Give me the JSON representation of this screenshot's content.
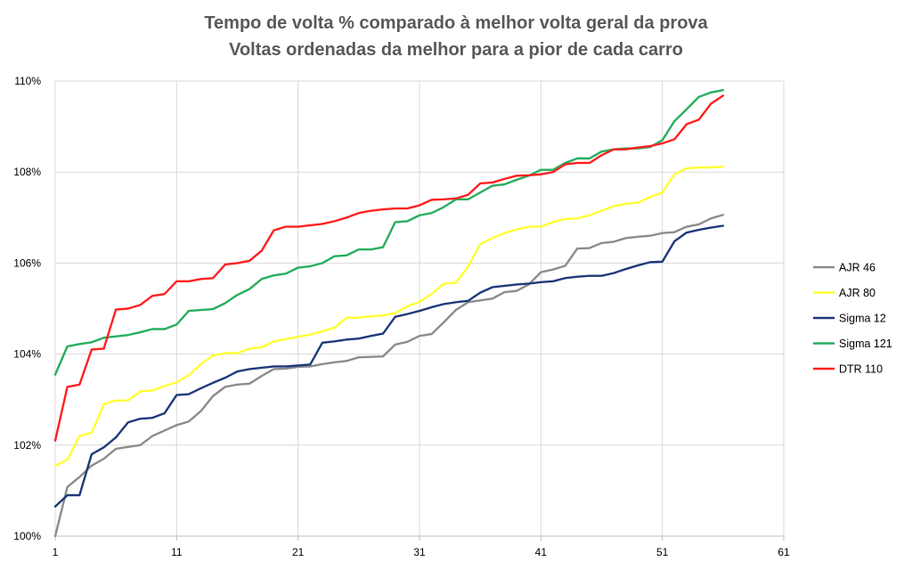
{
  "chart_data": {
    "type": "line",
    "title": "Tempo de volta % comparado à melhor volta geral da prova",
    "subtitle": "Voltas ordenadas da melhor para a pior de cada carro",
    "xlabel": "",
    "ylabel": "",
    "xlim": [
      1,
      61
    ],
    "ylim": [
      100,
      110
    ],
    "x_ticks": [
      1,
      11,
      21,
      31,
      41,
      51,
      61
    ],
    "y_ticks": [
      100,
      102,
      104,
      106,
      108,
      110
    ],
    "x_tick_labels": [
      "1",
      "11",
      "21",
      "31",
      "41",
      "51",
      "61"
    ],
    "y_tick_labels": [
      "100%",
      "102%",
      "104%",
      "106%",
      "108%",
      "110%"
    ],
    "grid": true,
    "legend_position": "right",
    "x": [
      1,
      2,
      3,
      4,
      5,
      6,
      7,
      8,
      9,
      10,
      11,
      12,
      13,
      14,
      15,
      16,
      17,
      18,
      19,
      20,
      21,
      22,
      23,
      24,
      25,
      26,
      27,
      28,
      29,
      30,
      31,
      32,
      33,
      34,
      35,
      36,
      37,
      38,
      39,
      40,
      41,
      42,
      43,
      44,
      45,
      46,
      47,
      48,
      49,
      50,
      51,
      52,
      53,
      54,
      55,
      56
    ],
    "series": [
      {
        "name": "AJR 46",
        "color": "#8c8c8c",
        "values": [
          100.0,
          101.08,
          101.3,
          101.55,
          101.7,
          101.92,
          101.96,
          102.0,
          102.2,
          102.32,
          102.44,
          102.52,
          102.75,
          103.08,
          103.28,
          103.33,
          103.35,
          103.52,
          103.67,
          103.68,
          103.72,
          103.73,
          103.78,
          103.82,
          103.85,
          103.93,
          103.94,
          103.95,
          104.21,
          104.27,
          104.4,
          104.44,
          104.7,
          104.97,
          105.14,
          105.18,
          105.22,
          105.36,
          105.39,
          105.53,
          105.8,
          105.86,
          105.94,
          106.32,
          106.33,
          106.44,
          106.47,
          106.55,
          106.58,
          106.6,
          106.66,
          106.68,
          106.8,
          106.85,
          106.98,
          107.06
        ]
      },
      {
        "name": "AJR 80",
        "color": "#ffff33",
        "values": [
          101.55,
          101.68,
          102.2,
          102.27,
          102.9,
          102.98,
          102.98,
          103.18,
          103.2,
          103.3,
          103.38,
          103.54,
          103.78,
          103.97,
          104.02,
          104.02,
          104.12,
          104.15,
          104.28,
          104.33,
          104.38,
          104.43,
          104.5,
          104.58,
          104.8,
          104.8,
          104.83,
          104.85,
          104.9,
          105.05,
          105.15,
          105.32,
          105.55,
          105.57,
          105.92,
          106.42,
          106.55,
          106.66,
          106.74,
          106.8,
          106.8,
          106.9,
          106.97,
          106.98,
          107.05,
          107.15,
          107.25,
          107.3,
          107.33,
          107.45,
          107.55,
          107.95,
          108.08,
          108.1,
          108.1,
          108.12
        ]
      },
      {
        "name": "Sigma 12",
        "color": "#1f3a7a",
        "values": [
          100.65,
          100.9,
          100.9,
          101.8,
          101.95,
          102.17,
          102.5,
          102.58,
          102.6,
          102.7,
          103.1,
          103.12,
          103.25,
          103.37,
          103.48,
          103.62,
          103.67,
          103.7,
          103.73,
          103.73,
          103.75,
          103.77,
          104.25,
          104.28,
          104.32,
          104.34,
          104.4,
          104.45,
          104.82,
          104.88,
          104.95,
          105.03,
          105.1,
          105.14,
          105.17,
          105.35,
          105.47,
          105.5,
          105.53,
          105.55,
          105.58,
          105.6,
          105.67,
          105.7,
          105.72,
          105.72,
          105.78,
          105.87,
          105.95,
          106.02,
          106.03,
          106.48,
          106.67,
          106.73,
          106.78,
          106.82
        ]
      },
      {
        "name": "Sigma 121",
        "color": "#27ae60",
        "values": [
          103.55,
          104.17,
          104.22,
          104.26,
          104.36,
          104.39,
          104.42,
          104.48,
          104.55,
          104.55,
          104.65,
          104.95,
          104.97,
          104.99,
          105.12,
          105.3,
          105.43,
          105.65,
          105.73,
          105.77,
          105.9,
          105.93,
          106.0,
          106.15,
          106.17,
          106.3,
          106.3,
          106.35,
          106.9,
          106.92,
          107.05,
          107.1,
          107.23,
          107.4,
          107.4,
          107.55,
          107.7,
          107.73,
          107.83,
          107.92,
          108.05,
          108.05,
          108.2,
          108.3,
          108.3,
          108.45,
          108.5,
          108.52,
          108.52,
          108.55,
          108.7,
          109.12,
          109.38,
          109.65,
          109.75,
          109.8
        ]
      },
      {
        "name": "DTR 110",
        "color": "#ff2020",
        "values": [
          102.1,
          103.28,
          103.33,
          104.1,
          104.12,
          104.98,
          105.0,
          105.08,
          105.28,
          105.32,
          105.6,
          105.6,
          105.65,
          105.67,
          105.97,
          106.0,
          106.05,
          106.27,
          106.72,
          106.8,
          106.8,
          106.83,
          106.86,
          106.92,
          107.0,
          107.1,
          107.15,
          107.18,
          107.2,
          107.2,
          107.27,
          107.39,
          107.4,
          107.42,
          107.5,
          107.75,
          107.77,
          107.85,
          107.92,
          107.93,
          107.95,
          108.0,
          108.17,
          108.2,
          108.2,
          108.37,
          108.5,
          108.5,
          108.54,
          108.57,
          108.63,
          108.72,
          109.05,
          109.15,
          109.5,
          109.68
        ]
      }
    ]
  }
}
